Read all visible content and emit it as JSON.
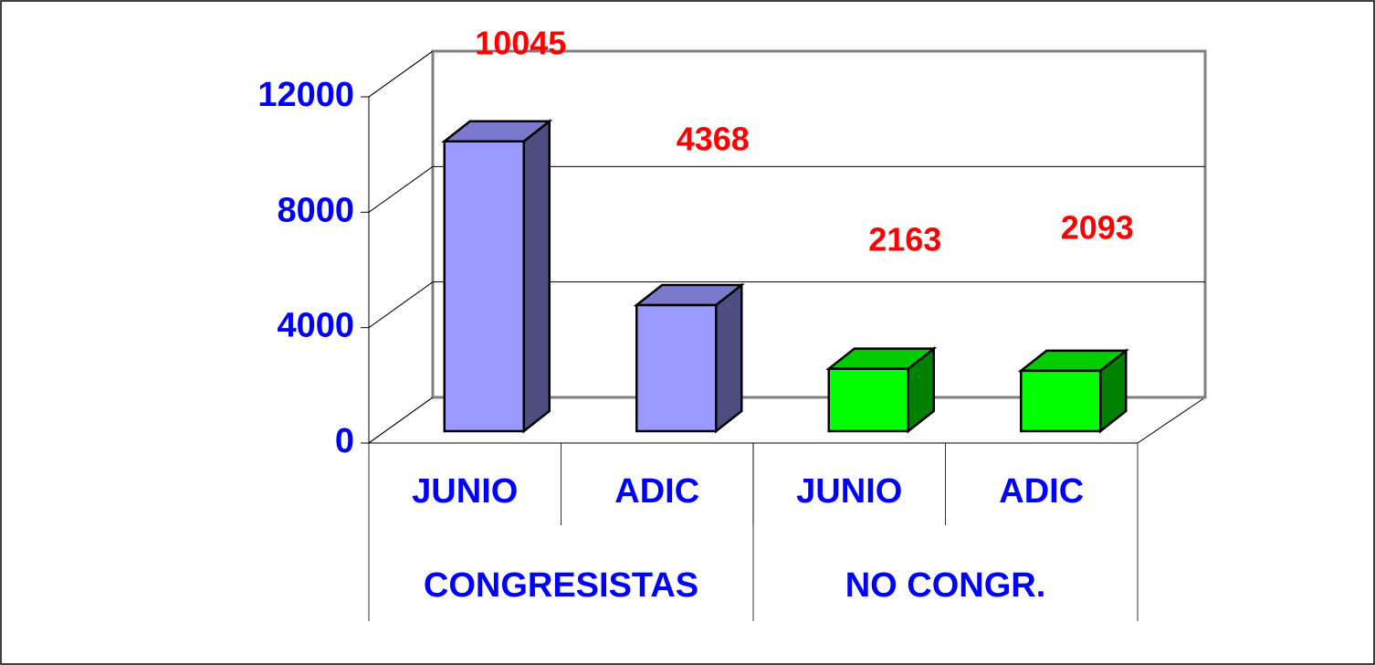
{
  "chart_data": {
    "type": "bar3d",
    "categories": [
      "JUNIO",
      "ADIC",
      "JUNIO",
      "ADIC"
    ],
    "groups": [
      "CONGRESISTAS",
      "NO CONGR."
    ],
    "values": [
      10045,
      4368,
      2163,
      2093
    ],
    "colors": [
      "#9999ff",
      "#9999ff",
      "#00ff00",
      "#00ff00"
    ],
    "ylim": [
      0,
      12000
    ],
    "yticks": [
      0,
      4000,
      8000,
      12000
    ],
    "grid": true
  }
}
